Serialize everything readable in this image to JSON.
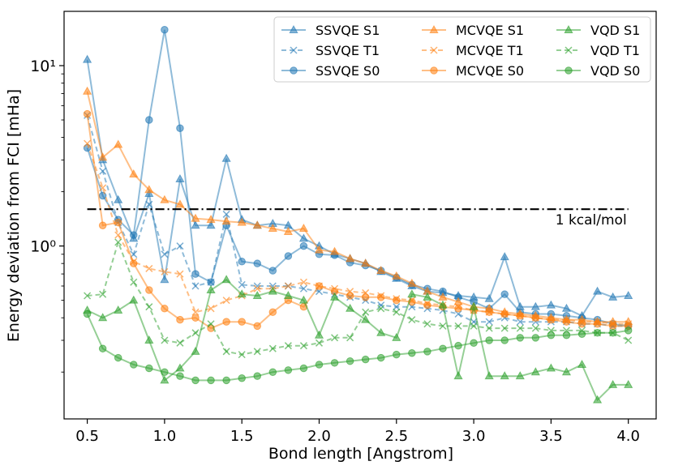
{
  "chart_data": {
    "type": "line",
    "xlabel": "Bond length [Angstrom]",
    "ylabel": "Energy deviation from FCI [mHa]",
    "xlim": [
      0.35,
      4.18
    ],
    "ylim": [
      0.11,
      20
    ],
    "yscale": "log",
    "x_ticks": [
      0.5,
      1.0,
      1.5,
      2.0,
      2.5,
      3.0,
      3.5,
      4.0
    ],
    "x_tick_labels": [
      "0.5",
      "1.0",
      "1.5",
      "2.0",
      "2.5",
      "3.0",
      "3.5",
      "4.0"
    ],
    "y_ticks": [
      1,
      10
    ],
    "y_tick_labels": [
      "10⁰",
      "10¹"
    ],
    "legend_location": "upper-right",
    "x": [
      0.5,
      0.6,
      0.7,
      0.8,
      0.9,
      1.0,
      1.1,
      1.2,
      1.3,
      1.4,
      1.5,
      1.6,
      1.7,
      1.8,
      1.9,
      2.0,
      2.1,
      2.2,
      2.3,
      2.4,
      2.5,
      2.6,
      2.7,
      2.8,
      2.9,
      3.0,
      3.1,
      3.2,
      3.3,
      3.4,
      3.5,
      3.6,
      3.7,
      3.8,
      3.9,
      4.0
    ],
    "reference_line": {
      "y": 1.6,
      "label": "1 kcal/mol",
      "x_range": [
        0.5,
        4.0
      ]
    },
    "series": [
      {
        "name": "SSVQE S1",
        "color": "#1f77b4",
        "marker": "triangle",
        "dashed": false,
        "values": [
          10.8,
          3.0,
          1.8,
          1.1,
          1.95,
          0.65,
          2.35,
          1.3,
          1.3,
          3.05,
          1.4,
          1.3,
          1.33,
          1.3,
          1.1,
          1.0,
          0.9,
          0.85,
          0.8,
          0.72,
          0.66,
          0.6,
          0.56,
          0.55,
          0.53,
          0.52,
          0.51,
          0.87,
          0.46,
          0.46,
          0.47,
          0.45,
          0.41,
          0.56,
          0.52,
          0.53
        ]
      },
      {
        "name": "SSVQE T1",
        "color": "#1f77b4",
        "marker": "x",
        "dashed": true,
        "values": [
          5.3,
          2.6,
          1.35,
          0.9,
          1.7,
          0.9,
          1.0,
          0.6,
          0.63,
          1.5,
          0.61,
          0.6,
          0.6,
          0.6,
          0.58,
          0.56,
          0.54,
          0.52,
          0.5,
          0.47,
          0.46,
          0.46,
          0.45,
          0.44,
          0.42,
          0.38,
          0.38,
          0.4,
          0.38,
          0.38,
          0.38,
          0.38,
          0.37,
          0.37,
          0.36,
          0.36
        ]
      },
      {
        "name": "SSVQE S0",
        "color": "#1f77b4",
        "marker": "circle",
        "dashed": false,
        "values": [
          3.5,
          1.9,
          1.4,
          1.15,
          5.0,
          15.8,
          4.5,
          0.7,
          0.63,
          1.3,
          0.82,
          0.8,
          0.73,
          0.88,
          1.0,
          0.9,
          0.89,
          0.81,
          0.78,
          0.73,
          0.67,
          0.61,
          0.58,
          0.56,
          0.52,
          0.49,
          0.45,
          0.54,
          0.43,
          0.42,
          0.42,
          0.41,
          0.4,
          0.39,
          0.37,
          0.36
        ]
      },
      {
        "name": "MCVQE S1",
        "color": "#ff7f0e",
        "marker": "triangle",
        "dashed": false,
        "values": [
          7.2,
          3.1,
          3.65,
          2.5,
          2.05,
          1.8,
          1.7,
          1.42,
          1.4,
          1.37,
          1.35,
          1.3,
          1.25,
          1.2,
          1.25,
          0.95,
          0.93,
          0.85,
          0.8,
          0.73,
          0.68,
          0.62,
          0.56,
          0.52,
          0.49,
          0.46,
          0.45,
          0.43,
          0.42,
          0.41,
          0.4,
          0.39,
          0.39,
          0.38,
          0.38,
          0.38
        ]
      },
      {
        "name": "MCVQE T1",
        "color": "#ff7f0e",
        "marker": "x",
        "dashed": true,
        "values": [
          3.7,
          2.1,
          1.15,
          0.82,
          0.75,
          0.72,
          0.7,
          0.43,
          0.45,
          0.5,
          0.53,
          0.58,
          0.58,
          0.6,
          0.63,
          0.6,
          0.58,
          0.56,
          0.55,
          0.53,
          0.51,
          0.5,
          0.48,
          0.47,
          0.46,
          0.44,
          0.43,
          0.42,
          0.41,
          0.4,
          0.39,
          0.39,
          0.38,
          0.38,
          0.37,
          0.37
        ]
      },
      {
        "name": "MCVQE S0",
        "color": "#ff7f0e",
        "marker": "circle",
        "dashed": false,
        "values": [
          5.4,
          1.3,
          1.35,
          0.8,
          0.57,
          0.45,
          0.39,
          0.4,
          0.35,
          0.38,
          0.38,
          0.36,
          0.43,
          0.5,
          0.46,
          0.6,
          0.56,
          0.53,
          0.52,
          0.52,
          0.5,
          0.49,
          0.47,
          0.46,
          0.45,
          0.44,
          0.43,
          0.42,
          0.41,
          0.4,
          0.39,
          0.38,
          0.37,
          0.37,
          0.36,
          0.36
        ]
      },
      {
        "name": "VQD S1",
        "color": "#2ca02c",
        "marker": "triangle",
        "dashed": false,
        "values": [
          0.44,
          0.4,
          0.44,
          0.5,
          0.3,
          0.18,
          0.21,
          0.26,
          0.57,
          0.65,
          0.54,
          0.53,
          0.56,
          0.53,
          0.5,
          0.32,
          0.52,
          0.45,
          0.39,
          0.33,
          0.31,
          0.54,
          0.52,
          0.47,
          0.19,
          0.46,
          0.19,
          0.19,
          0.19,
          0.2,
          0.21,
          0.2,
          0.22,
          0.14,
          0.17,
          0.17
        ]
      },
      {
        "name": "VQD T1",
        "color": "#2ca02c",
        "marker": "x",
        "dashed": true,
        "values": [
          0.53,
          0.54,
          1.05,
          0.63,
          0.46,
          0.3,
          0.29,
          0.33,
          0.37,
          0.26,
          0.25,
          0.26,
          0.27,
          0.28,
          0.28,
          0.29,
          0.31,
          0.31,
          0.43,
          0.45,
          0.43,
          0.39,
          0.37,
          0.36,
          0.36,
          0.36,
          0.35,
          0.35,
          0.35,
          0.35,
          0.34,
          0.34,
          0.34,
          0.33,
          0.33,
          0.3
        ]
      },
      {
        "name": "VQD S0",
        "color": "#2ca02c",
        "marker": "circle",
        "dashed": false,
        "values": [
          0.42,
          0.27,
          0.24,
          0.22,
          0.21,
          0.2,
          0.19,
          0.18,
          0.18,
          0.18,
          0.185,
          0.19,
          0.2,
          0.205,
          0.21,
          0.22,
          0.225,
          0.23,
          0.235,
          0.24,
          0.25,
          0.255,
          0.26,
          0.27,
          0.28,
          0.29,
          0.3,
          0.3,
          0.31,
          0.31,
          0.32,
          0.32,
          0.325,
          0.33,
          0.33,
          0.34
        ]
      }
    ]
  }
}
